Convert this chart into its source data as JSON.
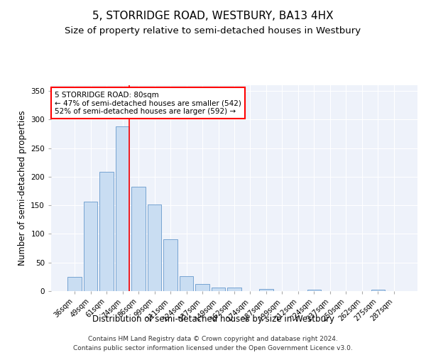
{
  "title": "5, STORRIDGE ROAD, WESTBURY, BA13 4HX",
  "subtitle": "Size of property relative to semi-detached houses in Westbury",
  "xlabel": "Distribution of semi-detached houses by size in Westbury",
  "ylabel": "Number of semi-detached properties",
  "categories": [
    "36sqm",
    "49sqm",
    "61sqm",
    "74sqm",
    "86sqm",
    "99sqm",
    "111sqm",
    "124sqm",
    "137sqm",
    "149sqm",
    "162sqm",
    "174sqm",
    "187sqm",
    "199sqm",
    "212sqm",
    "224sqm",
    "237sqm",
    "250sqm",
    "262sqm",
    "275sqm",
    "287sqm"
  ],
  "values": [
    25,
    157,
    208,
    288,
    183,
    152,
    91,
    26,
    13,
    6,
    6,
    0,
    4,
    0,
    0,
    3,
    0,
    0,
    0,
    3,
    0
  ],
  "bar_color": "#c9ddf2",
  "bar_edge_color": "#6699cc",
  "red_line_index": 3,
  "ylim": [
    0,
    360
  ],
  "yticks": [
    0,
    50,
    100,
    150,
    200,
    250,
    300,
    350
  ],
  "annotation_line1": "5 STORRIDGE ROAD: 80sqm",
  "annotation_line2": "← 47% of semi-detached houses are smaller (542)",
  "annotation_line3": "52% of semi-detached houses are larger (592) →",
  "footer_line1": "Contains HM Land Registry data © Crown copyright and database right 2024.",
  "footer_line2": "Contains public sector information licensed under the Open Government Licence v3.0.",
  "background_color": "#eef2fa",
  "grid_color": "#ffffff",
  "title_fontsize": 11,
  "subtitle_fontsize": 9.5,
  "tick_fontsize": 7,
  "ylabel_fontsize": 8.5,
  "xlabel_fontsize": 8.5,
  "footer_fontsize": 6.5
}
